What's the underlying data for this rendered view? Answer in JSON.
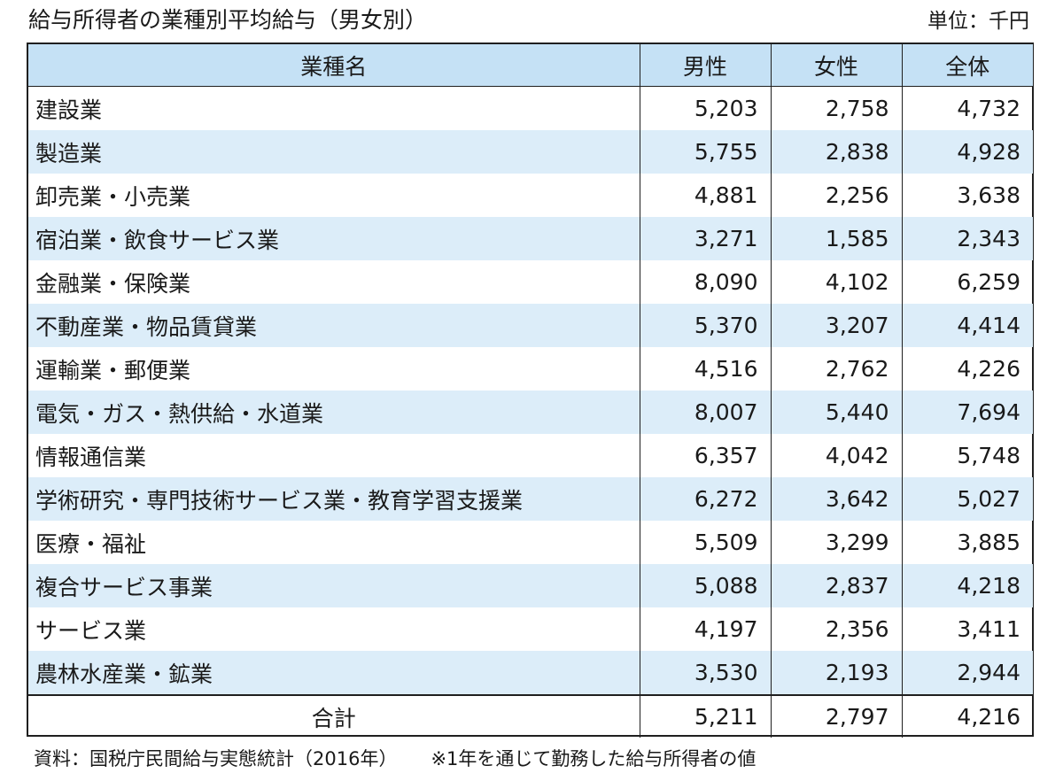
{
  "title": "給与所得者の業種別平均給与（男女別）",
  "unit": "単位：千円",
  "headers": {
    "name": "業種名",
    "male": "男性",
    "female": "女性",
    "total": "全体"
  },
  "rows": [
    {
      "name": "建設業",
      "male": "5,203",
      "female": "2,758",
      "total": "4,732"
    },
    {
      "name": "製造業",
      "male": "5,755",
      "female": "2,838",
      "total": "4,928"
    },
    {
      "name": "卸売業・小売業",
      "male": "4,881",
      "female": "2,256",
      "total": "3,638"
    },
    {
      "name": "宿泊業・飲食サービス業",
      "male": "3,271",
      "female": "1,585",
      "total": "2,343"
    },
    {
      "name": "金融業・保険業",
      "male": "8,090",
      "female": "4,102",
      "total": "6,259"
    },
    {
      "name": "不動産業・物品賃貸業",
      "male": "5,370",
      "female": "3,207",
      "total": "4,414"
    },
    {
      "name": "運輸業・郵便業",
      "male": "4,516",
      "female": "2,762",
      "total": "4,226"
    },
    {
      "name": "電気・ガス・熱供給・水道業",
      "male": "8,007",
      "female": "5,440",
      "total": "7,694"
    },
    {
      "name": "情報通信業",
      "male": "6,357",
      "female": "4,042",
      "total": "5,748"
    },
    {
      "name": "学術研究・専門技術サービス業・教育学習支援業",
      "male": "6,272",
      "female": "3,642",
      "total": "5,027"
    },
    {
      "name": "医療・福祉",
      "male": "5,509",
      "female": "3,299",
      "total": "3,885"
    },
    {
      "name": "複合サービス事業",
      "male": "5,088",
      "female": "2,837",
      "total": "4,218"
    },
    {
      "name": "サービス業",
      "male": "4,197",
      "female": "2,356",
      "total": "3,411"
    },
    {
      "name": "農林水産業・鉱業",
      "male": "3,530",
      "female": "2,193",
      "total": "2,944"
    }
  ],
  "total_row": {
    "name": "合計",
    "male": "5,211",
    "female": "2,797",
    "total": "4,216"
  },
  "footnote": {
    "source": "資料：国税庁民間給与実態統計（2016年）",
    "note": "※1年を通じて勤務した給与所得者の値"
  },
  "colors": {
    "header_bg": "#c5e1f5",
    "band_bg": "#dcedf9",
    "border": "#1f1f1f"
  }
}
